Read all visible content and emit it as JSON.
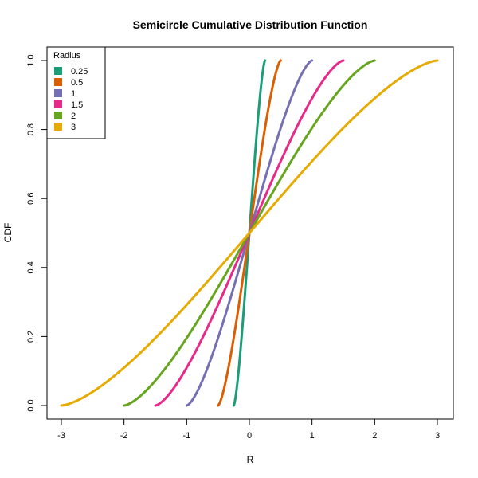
{
  "chart_data": {
    "type": "line",
    "title": "Semicircle Cumulative Distribution Function",
    "xlabel": "R",
    "ylabel": "CDF",
    "xlim": [
      -3,
      3
    ],
    "ylim": [
      0,
      1
    ],
    "x_ticks": [
      -3,
      -2,
      -1,
      0,
      1,
      2,
      3
    ],
    "y_ticks": [
      0.0,
      0.2,
      0.4,
      0.6,
      0.8,
      1.0
    ],
    "x_tick_labels": [
      "-3",
      "-2",
      "-1",
      "0",
      "1",
      "2",
      "3"
    ],
    "y_tick_labels": [
      "0.0",
      "0.2",
      "0.4",
      "0.6",
      "0.8",
      "1.0"
    ],
    "grid": false,
    "legend": {
      "title": "Radius",
      "placement": "top-left"
    },
    "series": [
      {
        "name": "0.25",
        "radius": 0.25,
        "color": "#1b9e77"
      },
      {
        "name": "0.5",
        "radius": 0.5,
        "color": "#d95f02"
      },
      {
        "name": "1",
        "radius": 1,
        "color": "#7570b3"
      },
      {
        "name": "1.5",
        "radius": 1.5,
        "color": "#e7298a"
      },
      {
        "name": "2",
        "radius": 2,
        "color": "#66a61e"
      },
      {
        "name": "3",
        "radius": 3,
        "color": "#e6ab02"
      }
    ]
  }
}
